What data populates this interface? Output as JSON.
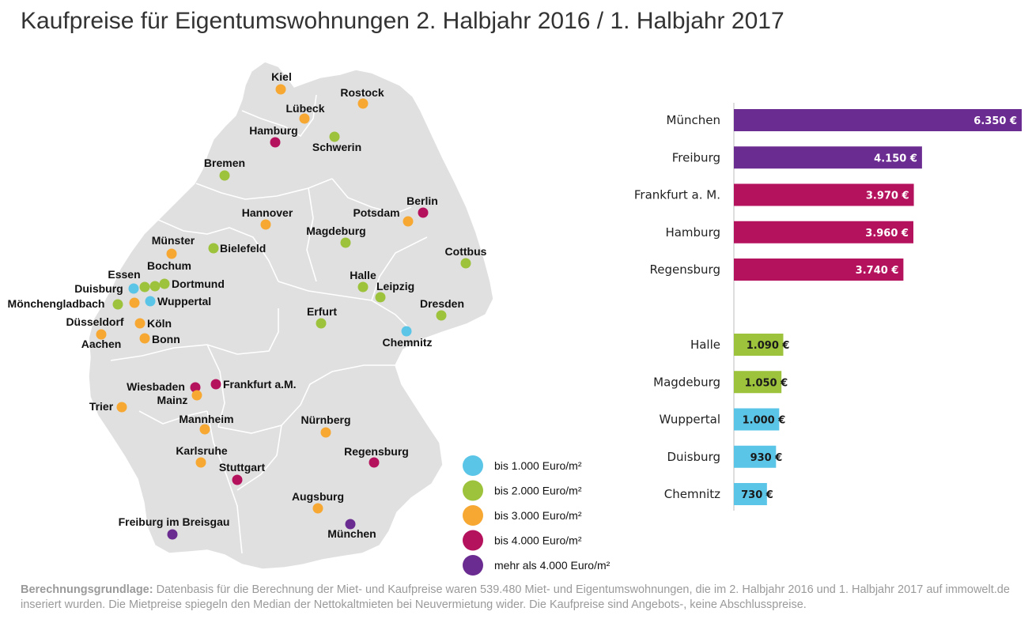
{
  "title": "Kaufpreise für Eigentumswohnungen 2. Halbjahr 2016 / 1. Halbjahr 2017",
  "colors": {
    "cat1": "#5bc5e8",
    "cat2": "#9dc23b",
    "cat3": "#f7a833",
    "cat4": "#b5125e",
    "cat5": "#6b2c91",
    "map_fill": "#e0e0e0",
    "map_border": "#ffffff"
  },
  "legend": [
    {
      "label": "bis 1.000 Euro/m²",
      "category": "cat1"
    },
    {
      "label": "bis 2.000 Euro/m²",
      "category": "cat2"
    },
    {
      "label": "bis 3.000 Euro/m²",
      "category": "cat3"
    },
    {
      "label": "bis 4.000 Euro/m²",
      "category": "cat4"
    },
    {
      "label": "mehr als 4.000 Euro/m²",
      "category": "cat5"
    }
  ],
  "cities": [
    {
      "name": "Kiel",
      "category": "cat3"
    },
    {
      "name": "Rostock",
      "category": "cat3"
    },
    {
      "name": "Lübeck",
      "category": "cat3"
    },
    {
      "name": "Hamburg",
      "category": "cat4"
    },
    {
      "name": "Schwerin",
      "category": "cat2"
    },
    {
      "name": "Bremen",
      "category": "cat2"
    },
    {
      "name": "Berlin",
      "category": "cat4"
    },
    {
      "name": "Hannover",
      "category": "cat3"
    },
    {
      "name": "Potsdam",
      "category": "cat3"
    },
    {
      "name": "Magdeburg",
      "category": "cat2"
    },
    {
      "name": "Münster",
      "category": "cat3"
    },
    {
      "name": "Bielefeld",
      "category": "cat2"
    },
    {
      "name": "Cottbus",
      "category": "cat2"
    },
    {
      "name": "Essen",
      "category": "cat2"
    },
    {
      "name": "Bochum",
      "category": "cat2"
    },
    {
      "name": "Dortmund",
      "category": "cat2"
    },
    {
      "name": "Duisburg",
      "category": "cat1"
    },
    {
      "name": "Mönchengladbach",
      "category": "cat2"
    },
    {
      "name": "Wuppertal",
      "category": "cat1"
    },
    {
      "name": "Düsseldorf",
      "category": "cat3"
    },
    {
      "name": "Köln",
      "category": "cat3"
    },
    {
      "name": "Aachen",
      "category": "cat3"
    },
    {
      "name": "Bonn",
      "category": "cat3"
    },
    {
      "name": "Halle",
      "category": "cat2"
    },
    {
      "name": "Leipzig",
      "category": "cat2"
    },
    {
      "name": "Dresden",
      "category": "cat2"
    },
    {
      "name": "Erfurt",
      "category": "cat2"
    },
    {
      "name": "Chemnitz",
      "category": "cat1"
    },
    {
      "name": "Wiesbaden",
      "category": "cat4"
    },
    {
      "name": "Frankfurt a.M.",
      "category": "cat4"
    },
    {
      "name": "Mainz",
      "category": "cat3"
    },
    {
      "name": "Trier",
      "category": "cat3"
    },
    {
      "name": "Mannheim",
      "category": "cat3"
    },
    {
      "name": "Nürnberg",
      "category": "cat3"
    },
    {
      "name": "Karlsruhe",
      "category": "cat3"
    },
    {
      "name": "Stuttgart",
      "category": "cat4"
    },
    {
      "name": "Regensburg",
      "category": "cat4"
    },
    {
      "name": "Augsburg",
      "category": "cat3"
    },
    {
      "name": "Freiburg im Breisgau",
      "category": "cat5"
    },
    {
      "name": "München",
      "category": "cat5"
    }
  ],
  "chart_data": {
    "type": "bar",
    "orientation": "horizontal",
    "unit": "€",
    "xlim": [
      0,
      6350
    ],
    "groups": [
      {
        "categories": [
          "München",
          "Freiburg",
          "Frankfurt a. M.",
          "Hamburg",
          "Regensburg"
        ],
        "values": [
          6350,
          4150,
          3970,
          3960,
          3740
        ],
        "value_labels": [
          "6.350 €",
          "4.150 €",
          "3.970 €",
          "3.960 €",
          "3.740 €"
        ],
        "colors": [
          "#6b2c91",
          "#6b2c91",
          "#b5125e",
          "#b5125e",
          "#b5125e"
        ]
      },
      {
        "categories": [
          "Halle",
          "Magdeburg",
          "Wuppertal",
          "Duisburg",
          "Chemnitz"
        ],
        "values": [
          1090,
          1050,
          1000,
          930,
          730
        ],
        "value_labels": [
          "1.090 €",
          "1.050 €",
          "1.000 €",
          "930 €",
          "730 €"
        ],
        "colors": [
          "#9dc23b",
          "#9dc23b",
          "#5bc5e8",
          "#5bc5e8",
          "#5bc5e8"
        ]
      }
    ]
  },
  "footnote": {
    "bold": "Berechnungsgrundlage:",
    "text": " Datenbasis für die Berechnung der Miet- und Kaufpreise waren 539.480 Miet- und Eigentumswohnungen, die im 2. Halbjahr 2016 und 1. Halbjahr 2017 auf immowelt.de inseriert wurden. Die Mietpreise spiegeln den Median der Nettokaltmieten bei Neuvermietung wider. Die Kaufpreise sind Angebots-, keine Abschlusspreise."
  }
}
